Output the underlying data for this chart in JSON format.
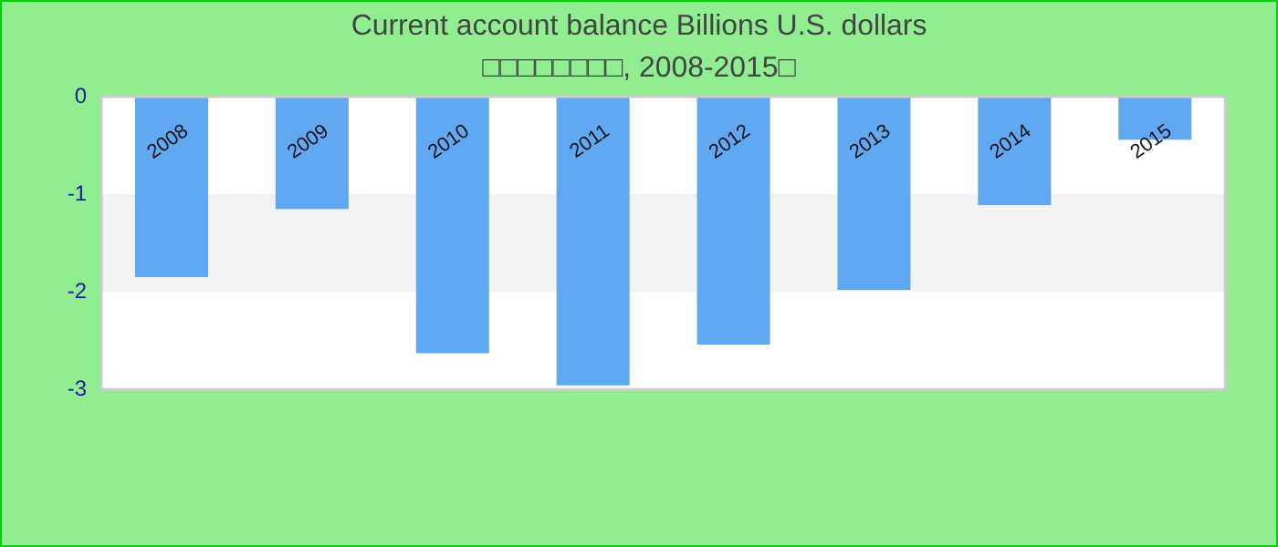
{
  "chart_data": {
    "type": "bar",
    "title": "Current account balance Billions U.S. dollars",
    "subtitle": "□□□□□□□□, 2008-2015□",
    "categories": [
      "2008",
      "2009",
      "2010",
      "2011",
      "2012",
      "2013",
      "2014",
      "2015"
    ],
    "values": [
      -1.85,
      -1.15,
      -2.63,
      -2.96,
      -2.54,
      -1.98,
      -1.11,
      -0.44
    ],
    "color": "#61a8f3",
    "ylim": [
      -3,
      0
    ],
    "yticks": [
      -3,
      -2,
      -1,
      0
    ],
    "bands": [
      {
        "axis": "y",
        "from": -2,
        "to": -1,
        "color": "#f2f2f2"
      }
    ]
  }
}
